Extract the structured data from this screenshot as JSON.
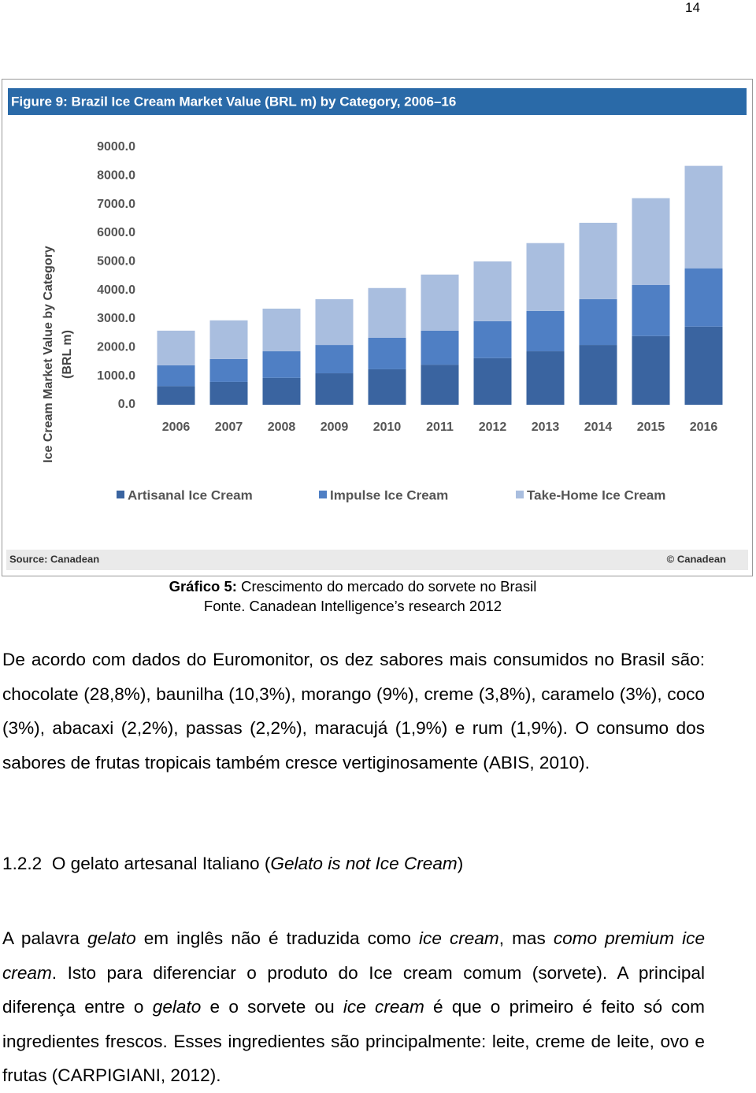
{
  "page_number": "14",
  "chart_data": {
    "type": "bar",
    "stacked": true,
    "title": "Figure 9: Brazil Ice Cream Market Value (BRL m) by Category, 2006–16",
    "ylabel": [
      "Ice Cream Market Value by Category",
      "(BRL m)"
    ],
    "source": "Source: Canadean",
    "copyright": "© Canadean",
    "categories": [
      "2006",
      "2007",
      "2008",
      "2009",
      "2010",
      "2011",
      "2012",
      "2013",
      "2014",
      "2015",
      "2016"
    ],
    "series": [
      {
        "name": "Artisanal Ice Cream",
        "color": "#3a64a0",
        "values": [
          650,
          800,
          940,
          1100,
          1240,
          1400,
          1630,
          1870,
          2090,
          2400,
          2730
        ]
      },
      {
        "name": "Impulse Ice Cream",
        "color": "#4f7fc4",
        "values": [
          730,
          800,
          930,
          990,
          1100,
          1190,
          1290,
          1410,
          1600,
          1790,
          2040
        ]
      },
      {
        "name": "Take-Home Ice Cream",
        "color": "#a9bedf",
        "values": [
          1210,
          1350,
          1490,
          1600,
          1740,
          1960,
          2090,
          2370,
          2670,
          3030,
          3580
        ]
      }
    ],
    "ylim": [
      0,
      9000
    ],
    "yticks": [
      {
        "value": 0,
        "label": "0.0"
      },
      {
        "value": 1000,
        "label": "1000.0"
      },
      {
        "value": 2000,
        "label": "2000.0"
      },
      {
        "value": 3000,
        "label": "3000.0"
      },
      {
        "value": 4000,
        "label": "4000.0"
      },
      {
        "value": 5000,
        "label": "5000.0"
      },
      {
        "value": 6000,
        "label": "6000.0"
      },
      {
        "value": 7000,
        "label": "7000.0"
      },
      {
        "value": 8000,
        "label": "8000.0"
      },
      {
        "value": 9000,
        "label": "9000.0"
      }
    ],
    "grid": false,
    "legend": "bottom"
  },
  "caption": {
    "label": "Gráfico  5:",
    "text": "Crescimento do mercado do sorvete no Brasil",
    "source": "Fonte. Canadean Intelligence’s research 2012"
  },
  "paragraphs": [
    {
      "segments": [
        "De acordo com dados do Euromonitor, os dez sabores mais consumidos no Brasil são: chocolate (28,8%), baunilha (10,3%), morango (9%), creme (3,8%), caramelo (3%), coco (3%), abacaxi (2,2%), passas (2,2%), maracujá (1,9%) e rum (1,9%). O consumo dos sabores de frutas tropicais também cresce vertiginosamente (ABIS, 2010)."
      ]
    },
    {
      "segments": [
        "A palavra ",
        "gelato",
        " em inglês não é traduzida como ",
        "ice cream",
        ", mas ",
        "como premium ice cream",
        ". Isto para diferenciar o produto do Ice cream comum (sorvete). A principal diferença entre o ",
        "gelato",
        " e o sorvete ou ",
        "ice cream",
        " é que o primeiro é feito só com ingredientes frescos. Esses ingredientes são principalmente: leite, creme de leite, ovo e frutas (CARPIGIANI, 2012)."
      ]
    }
  ],
  "heading": {
    "number": "1.2.2",
    "segments": [
      "O gelato artesanal Italiano (",
      "Gelato is not Ice Cream",
      ")"
    ]
  }
}
